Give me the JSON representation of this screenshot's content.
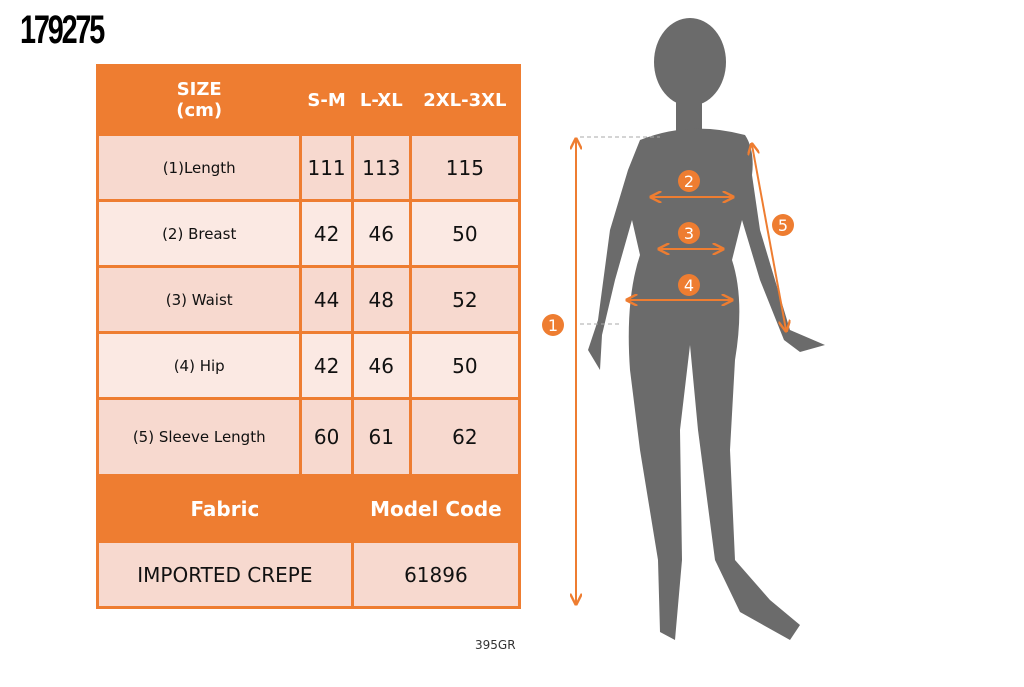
{
  "product_code": "179275",
  "table": {
    "header": [
      "SIZE\n(cm)",
      "S-M",
      "L-XL",
      "2XL-3XL"
    ],
    "header_line1": "SIZE",
    "header_line2": "(cm)",
    "rows": [
      {
        "label": "(1)Length",
        "values": [
          "111",
          "113",
          "115"
        ]
      },
      {
        "label": "(2) Breast",
        "values": [
          "42",
          "46",
          "50"
        ]
      },
      {
        "label": "(3) Waist",
        "values": [
          "44",
          "48",
          "52"
        ]
      },
      {
        "label": "(4) Hip",
        "values": [
          "42",
          "46",
          "50"
        ]
      },
      {
        "label": "(5) Sleeve Length",
        "values": [
          "60",
          "61",
          "62"
        ]
      }
    ],
    "fabric_label": "Fabric",
    "model_code_label": "Model Code",
    "fabric_value": "IMPORTED CREPE",
    "model_code_value": "61896"
  },
  "reference": "395GR",
  "figure": {
    "markers": [
      "1",
      "2",
      "3",
      "4",
      "5"
    ]
  },
  "colors": {
    "accent": "#ee7d31",
    "row_dark": "#f7d9cf",
    "row_light": "#fbe9e3",
    "silhouette": "#6b6b6b"
  }
}
